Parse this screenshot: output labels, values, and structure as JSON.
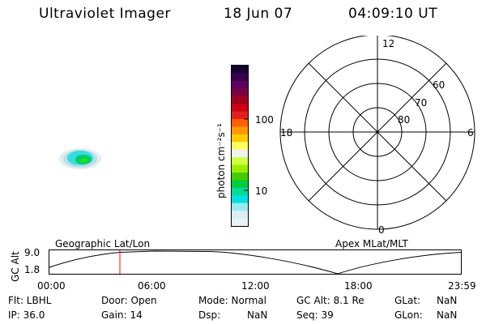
{
  "header": {
    "instrument": "Ultraviolet Imager",
    "date": "18 Jun 07",
    "time": "04:09:10 UT"
  },
  "colorbar": {
    "label": "photon cm⁻²s⁻¹",
    "ticks": [
      "100",
      "10"
    ],
    "colors": [
      "#1a0030",
      "#3a0050",
      "#5a0060",
      "#7a0040",
      "#a00020",
      "#cc0010",
      "#e02020",
      "#ff6000",
      "#ff9900",
      "#ffcc00",
      "#ffff60",
      "#f0f0f0",
      "#d0ff40",
      "#99ee00",
      "#44cc00",
      "#00cc40",
      "#00dd99",
      "#00e0e0",
      "#99eaf0",
      "#d8eef0",
      "#e8f2f2"
    ]
  },
  "polar_plot": {
    "mlt_labels": {
      "top": "12",
      "right": "6",
      "bottom": "0",
      "left": "18"
    },
    "lat_labels": [
      "60",
      "70",
      "80"
    ]
  },
  "altitude_plot": {
    "ylabel": "GC Alt",
    "yticks": [
      "9.0",
      "1.8"
    ],
    "left_title": "Geographic Lat/Lon",
    "right_title": "Apex MLat/MLT",
    "xticks": [
      "00:00",
      "06:00",
      "12:00",
      "18:00",
      "23:59"
    ]
  },
  "info": {
    "flt": "Flt: LBHL",
    "ip": "IP: 36.0",
    "door": "Door: Open",
    "gain": "Gain: 14",
    "mode": "Mode: Normal",
    "dsp": "Dsp:",
    "dsp_val": "NaN",
    "gc_alt": "GC Alt: 8.1 Re",
    "seq": "Seq: 39",
    "glat": "GLat:",
    "glat_val": "NaN",
    "glon": "GLon:",
    "glon_val": "NaN"
  }
}
